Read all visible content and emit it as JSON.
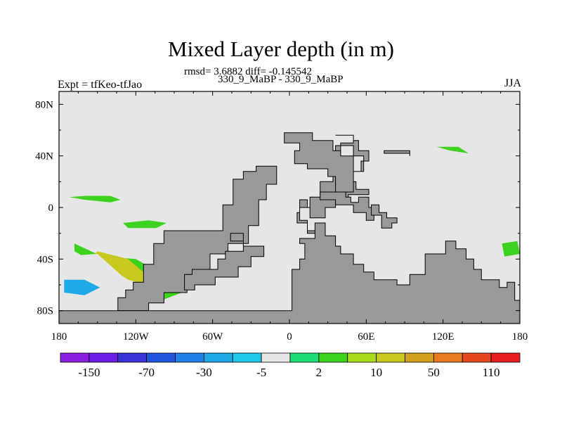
{
  "header": {
    "title": "Mixed Layer depth (in m)",
    "rmsd_text": "rmsd= 3.6882 diff= -0.145542",
    "subtitle": "330_9_MaBP - 330_9_MaBP",
    "left_label": "Expt = tfKeo-tfJao",
    "right_label": "JJA"
  },
  "chart_data": {
    "type": "heatmap",
    "title": "Mixed Layer depth (in m)",
    "subtitle": "330_9_MaBP - 330_9_MaBP",
    "xlabel": "",
    "ylabel": "",
    "xlim": [
      -180,
      180
    ],
    "ylim": [
      -90,
      90
    ],
    "x_ticks": [
      -180,
      -120,
      -60,
      0,
      60,
      120,
      180
    ],
    "x_tick_labels": [
      "180",
      "120W",
      "60W",
      "0",
      "60E",
      "120E",
      "180"
    ],
    "y_ticks": [
      80,
      40,
      0,
      -40,
      -80
    ],
    "y_tick_labels": [
      "80N",
      "40N",
      "0",
      "40S",
      "80S"
    ],
    "grid": false,
    "background_color": "#e6e6e6",
    "land_color": "#999999",
    "colorbar": {
      "colors": [
        "#8c1ee0",
        "#6a1ee6",
        "#3a32d6",
        "#1e56de",
        "#1e82e6",
        "#1eaae6",
        "#1ec8e6",
        "#e6e6e6",
        "#1edc78",
        "#3cd21e",
        "#aadc1e",
        "#c8c81e",
        "#d2a01e",
        "#e67a1e",
        "#e6461e",
        "#e61e1e"
      ],
      "labels": [
        "-150",
        "-70",
        "-30",
        "-5",
        "2",
        "10",
        "50",
        "110"
      ]
    },
    "continents": [
      {
        "name": "americas",
        "points": [
          [
            -26,
            32
          ],
          [
            -26,
            28
          ],
          [
            -36,
            28
          ],
          [
            -36,
            22
          ],
          [
            -44,
            22
          ],
          [
            -44,
            2
          ],
          [
            -52,
            2
          ],
          [
            -52,
            -18
          ],
          [
            -98,
            -18
          ],
          [
            -98,
            -28
          ],
          [
            -106,
            -28
          ],
          [
            -106,
            -44
          ],
          [
            -114,
            -44
          ],
          [
            -114,
            -58
          ],
          [
            -122,
            -58
          ],
          [
            -122,
            -64
          ],
          [
            -128,
            -64
          ],
          [
            -128,
            -70
          ],
          [
            -134,
            -70
          ],
          [
            -134,
            -80
          ],
          [
            -110,
            -80
          ],
          [
            -110,
            -74
          ],
          [
            -98,
            -74
          ],
          [
            -98,
            -66
          ],
          [
            -80,
            -66
          ],
          [
            -80,
            -52
          ],
          [
            -62,
            -52
          ],
          [
            -62,
            -36
          ],
          [
            -48,
            -36
          ],
          [
            -48,
            -28
          ],
          [
            -32,
            -28
          ],
          [
            -32,
            -14
          ],
          [
            -24,
            -14
          ],
          [
            -24,
            6
          ],
          [
            -18,
            6
          ],
          [
            -18,
            18
          ],
          [
            -10,
            18
          ],
          [
            -10,
            32
          ]
        ]
      },
      {
        "name": "antarctic-peninsula",
        "points": [
          [
            -82,
            -58
          ],
          [
            -82,
            -52
          ],
          [
            -76,
            -52
          ],
          [
            -76,
            -48
          ],
          [
            -56,
            -48
          ],
          [
            -56,
            -40
          ],
          [
            -50,
            -40
          ],
          [
            -50,
            -34
          ],
          [
            -36,
            -34
          ],
          [
            -36,
            -26
          ],
          [
            -46,
            -26
          ],
          [
            -46,
            -20
          ],
          [
            -36,
            -20
          ],
          [
            -36,
            -30
          ],
          [
            -20,
            -30
          ],
          [
            -20,
            -38
          ],
          [
            -30,
            -38
          ],
          [
            -30,
            -46
          ],
          [
            -40,
            -46
          ],
          [
            -40,
            -54
          ],
          [
            -58,
            -54
          ],
          [
            -58,
            -60
          ],
          [
            -74,
            -60
          ],
          [
            -74,
            -64
          ],
          [
            -82,
            -64
          ]
        ]
      },
      {
        "name": "eurasia-africa",
        "points": [
          [
            -180,
            -90
          ],
          [
            180,
            -90
          ],
          [
            180,
            -72
          ],
          [
            176,
            -72
          ],
          [
            176,
            -58
          ],
          [
            170,
            -58
          ],
          [
            170,
            -62
          ],
          [
            164,
            -62
          ],
          [
            164,
            -56
          ],
          [
            150,
            -56
          ],
          [
            150,
            -48
          ],
          [
            144,
            -48
          ],
          [
            144,
            -40
          ],
          [
            138,
            -40
          ],
          [
            138,
            -32
          ],
          [
            130,
            -32
          ],
          [
            130,
            -26
          ],
          [
            122,
            -26
          ],
          [
            122,
            -36
          ],
          [
            106,
            -36
          ],
          [
            106,
            -52
          ],
          [
            94,
            -52
          ],
          [
            94,
            -60
          ],
          [
            84,
            -60
          ],
          [
            84,
            -56
          ],
          [
            66,
            -56
          ],
          [
            66,
            -50
          ],
          [
            58,
            -50
          ],
          [
            58,
            -44
          ],
          [
            50,
            -44
          ],
          [
            50,
            -36
          ],
          [
            40,
            -36
          ],
          [
            40,
            -30
          ],
          [
            36,
            -30
          ],
          [
            36,
            -22
          ],
          [
            28,
            -22
          ],
          [
            28,
            -12
          ],
          [
            20,
            -12
          ],
          [
            20,
            -20
          ],
          [
            14,
            -20
          ],
          [
            14,
            -10
          ],
          [
            8,
            -10
          ],
          [
            8,
            0
          ],
          [
            16,
            0
          ],
          [
            16,
            8
          ],
          [
            24,
            8
          ],
          [
            24,
            20
          ],
          [
            34,
            20
          ],
          [
            34,
            32
          ],
          [
            36,
            32
          ],
          [
            36,
            30
          ],
          [
            40,
            30
          ],
          [
            40,
            32
          ],
          [
            40,
            36
          ],
          [
            48,
            36
          ],
          [
            48,
            28
          ],
          [
            58,
            28
          ],
          [
            58,
            40
          ],
          [
            50,
            40
          ],
          [
            50,
            48
          ],
          [
            36,
            48
          ],
          [
            36,
            42
          ],
          [
            40,
            42
          ],
          [
            40,
            50
          ],
          [
            50,
            50
          ],
          [
            50,
            56
          ],
          [
            36,
            56
          ],
          [
            36,
            56
          ],
          [
            50,
            56
          ],
          [
            50,
            52
          ],
          [
            54,
            52
          ],
          [
            54,
            44
          ],
          [
            62,
            44
          ],
          [
            62,
            36
          ],
          [
            56,
            36
          ],
          [
            56,
            28
          ],
          [
            48,
            28
          ],
          [
            48,
            20
          ],
          [
            52,
            20
          ],
          [
            52,
            14
          ],
          [
            62,
            14
          ],
          [
            62,
            10
          ],
          [
            46,
            10
          ],
          [
            46,
            4
          ],
          [
            36,
            4
          ],
          [
            36,
            0
          ],
          [
            28,
            0
          ],
          [
            28,
            -8
          ],
          [
            16,
            -8
          ],
          [
            16,
            0
          ],
          [
            14,
            0
          ],
          [
            14,
            6
          ],
          [
            8,
            6
          ],
          [
            8,
            -4
          ],
          [
            6,
            -4
          ],
          [
            6,
            -12
          ],
          [
            14,
            -12
          ],
          [
            14,
            -18
          ],
          [
            20,
            -18
          ],
          [
            20,
            -24
          ],
          [
            8,
            -24
          ],
          [
            8,
            -28
          ],
          [
            12,
            -28
          ],
          [
            12,
            -40
          ],
          [
            8,
            -40
          ],
          [
            8,
            -48
          ],
          [
            2,
            -48
          ],
          [
            2,
            -80
          ],
          [
            -180,
            -80
          ]
        ]
      }
    ],
    "islands": [
      {
        "name": "north-land",
        "points": [
          [
            -4,
            58
          ],
          [
            -4,
            50
          ],
          [
            8,
            50
          ],
          [
            8,
            44
          ],
          [
            4,
            44
          ],
          [
            4,
            34
          ],
          [
            14,
            34
          ],
          [
            14,
            30
          ],
          [
            30,
            30
          ],
          [
            30,
            24
          ],
          [
            36,
            24
          ],
          [
            36,
            12
          ],
          [
            50,
            12
          ],
          [
            50,
            40
          ],
          [
            40,
            40
          ],
          [
            40,
            44
          ],
          [
            34,
            44
          ],
          [
            34,
            52
          ],
          [
            18,
            52
          ],
          [
            18,
            58
          ]
        ]
      },
      {
        "name": "central-land",
        "points": [
          [
            24,
            6
          ],
          [
            24,
            12
          ],
          [
            44,
            12
          ],
          [
            44,
            8
          ],
          [
            48,
            8
          ],
          [
            48,
            4
          ],
          [
            54,
            4
          ],
          [
            54,
            8
          ],
          [
            62,
            8
          ],
          [
            62,
            0
          ],
          [
            66,
            0
          ],
          [
            66,
            -10
          ],
          [
            60,
            -10
          ],
          [
            60,
            -4
          ],
          [
            50,
            -4
          ],
          [
            50,
            2
          ],
          [
            36,
            2
          ],
          [
            36,
            6
          ]
        ]
      },
      {
        "name": "south-east-land",
        "points": [
          [
            64,
            2
          ],
          [
            64,
            -6
          ],
          [
            72,
            -6
          ],
          [
            72,
            -16
          ],
          [
            80,
            -16
          ],
          [
            80,
            -12
          ],
          [
            84,
            -12
          ],
          [
            84,
            -8
          ],
          [
            76,
            -8
          ],
          [
            76,
            -4
          ],
          [
            70,
            -4
          ],
          [
            70,
            2
          ]
        ]
      },
      {
        "name": "east-bar",
        "points": [
          [
            74,
            44
          ],
          [
            74,
            42
          ],
          [
            94,
            42
          ],
          [
            94,
            40
          ],
          [
            94,
            44
          ]
        ]
      }
    ],
    "anomaly_patches": [
      {
        "category": "2",
        "value": 6,
        "points": [
          [
            -172,
            8
          ],
          [
            -160,
            6
          ],
          [
            -140,
            4
          ],
          [
            -132,
            6
          ],
          [
            -140,
            9
          ],
          [
            -160,
            9
          ]
        ]
      },
      {
        "category": "2",
        "value": 6,
        "points": [
          [
            -96,
            -12
          ],
          [
            -110,
            -10
          ],
          [
            -130,
            -12
          ],
          [
            -126,
            -16
          ],
          [
            -104,
            -16
          ]
        ]
      },
      {
        "category": "2",
        "value": 6,
        "points": [
          [
            -168,
            -28
          ],
          [
            -146,
            -38
          ],
          [
            -120,
            -40
          ],
          [
            -102,
            -50
          ],
          [
            -102,
            -56
          ],
          [
            -124,
            -52
          ],
          [
            -150,
            -44
          ],
          [
            -168,
            -34
          ]
        ]
      },
      {
        "category": "10",
        "value": 30,
        "points": [
          [
            -150,
            -34
          ],
          [
            -126,
            -40
          ],
          [
            -112,
            -52
          ],
          [
            -112,
            -60
          ],
          [
            -126,
            -56
          ],
          [
            -142,
            -46
          ],
          [
            -154,
            -38
          ]
        ]
      },
      {
        "category": "-5",
        "value": -15,
        "points": [
          [
            -180,
            -38
          ],
          [
            -150,
            -36
          ],
          [
            -132,
            -52
          ],
          [
            -118,
            -66
          ],
          [
            -140,
            -68
          ],
          [
            -160,
            -70
          ],
          [
            -180,
            -66
          ]
        ]
      },
      {
        "category": "-30",
        "value": -50,
        "points": [
          [
            -176,
            -56
          ],
          [
            -160,
            -56
          ],
          [
            -148,
            -62
          ],
          [
            -160,
            -68
          ],
          [
            -176,
            -66
          ]
        ]
      },
      {
        "category": "2",
        "value": 6,
        "points": [
          [
            -106,
            -70
          ],
          [
            -90,
            -62
          ],
          [
            -76,
            -60
          ],
          [
            -84,
            -66
          ],
          [
            -100,
            -72
          ]
        ]
      },
      {
        "category": "2",
        "value": 6,
        "points": [
          [
            115,
            47
          ],
          [
            126,
            44
          ],
          [
            140,
            42
          ],
          [
            132,
            47
          ]
        ]
      },
      {
        "category": "2",
        "value": 6,
        "points": [
          [
            166,
            -28
          ],
          [
            178,
            -26
          ],
          [
            180,
            -36
          ],
          [
            168,
            -38
          ]
        ]
      },
      {
        "category": "-5",
        "value": -15,
        "points": [
          [
            162,
            -40
          ],
          [
            180,
            -38
          ],
          [
            180,
            -66
          ],
          [
            168,
            -62
          ]
        ]
      },
      {
        "category": "-5",
        "value": -15,
        "points": [
          [
            116,
            -18
          ],
          [
            122,
            -20
          ],
          [
            118,
            -24
          ],
          [
            112,
            -20
          ]
        ]
      }
    ]
  }
}
